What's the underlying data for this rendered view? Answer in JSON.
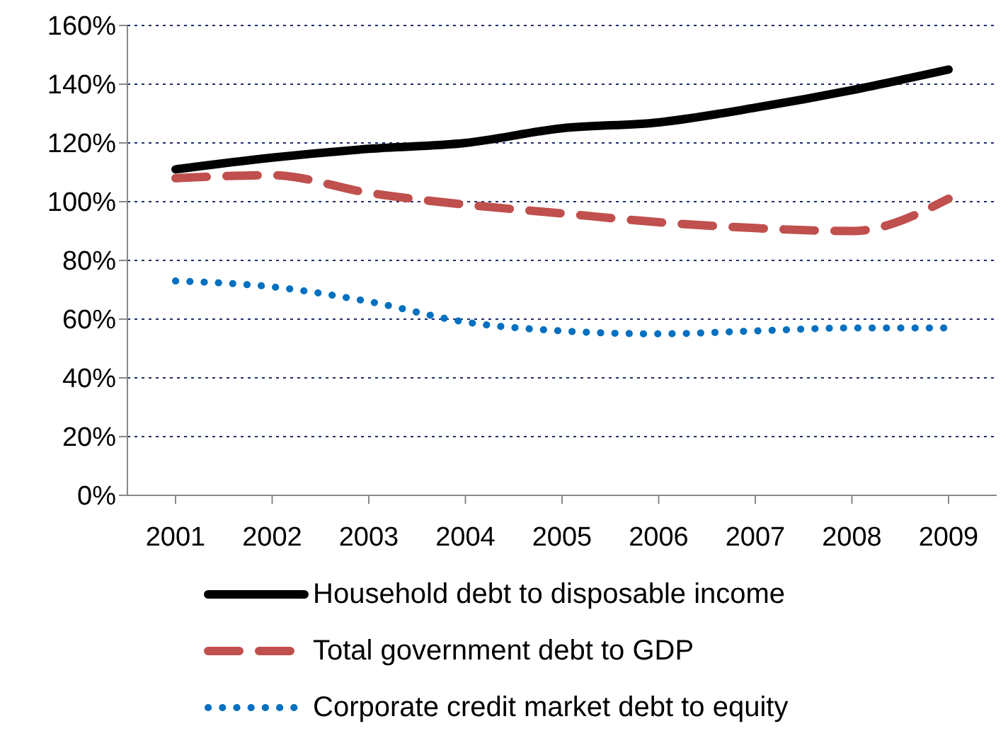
{
  "chart_data": {
    "type": "line",
    "categories": [
      "2001",
      "2002",
      "2003",
      "2004",
      "2005",
      "2006",
      "2007",
      "2008",
      "2009"
    ],
    "series": [
      {
        "name": "Household debt to disposable income",
        "color": "#000000",
        "line_style": "solid",
        "values": [
          111,
          115,
          118,
          120,
          125,
          127,
          132,
          138,
          145
        ]
      },
      {
        "name": "Total government debt to GDP",
        "color": "#c0504d",
        "line_style": "dashed",
        "values": [
          108,
          109,
          103,
          99,
          96,
          93,
          91,
          90,
          101
        ]
      },
      {
        "name": "Corporate credit market debt to equity",
        "color": "#0070c0",
        "line_style": "dotted",
        "values": [
          73,
          71,
          66,
          59,
          56,
          55,
          56,
          57,
          57
        ]
      }
    ],
    "ylim": [
      0,
      160
    ],
    "yticks": [
      {
        "value": 0,
        "label": "0%"
      },
      {
        "value": 20,
        "label": "20%"
      },
      {
        "value": 40,
        "label": "40%"
      },
      {
        "value": 60,
        "label": "60%"
      },
      {
        "value": 80,
        "label": "80%"
      },
      {
        "value": 100,
        "label": "100%"
      },
      {
        "value": 120,
        "label": "120%"
      },
      {
        "value": 140,
        "label": "140%"
      },
      {
        "value": 160,
        "label": "160%"
      }
    ],
    "grid": "y",
    "legend": "bottom",
    "marker": "none"
  }
}
